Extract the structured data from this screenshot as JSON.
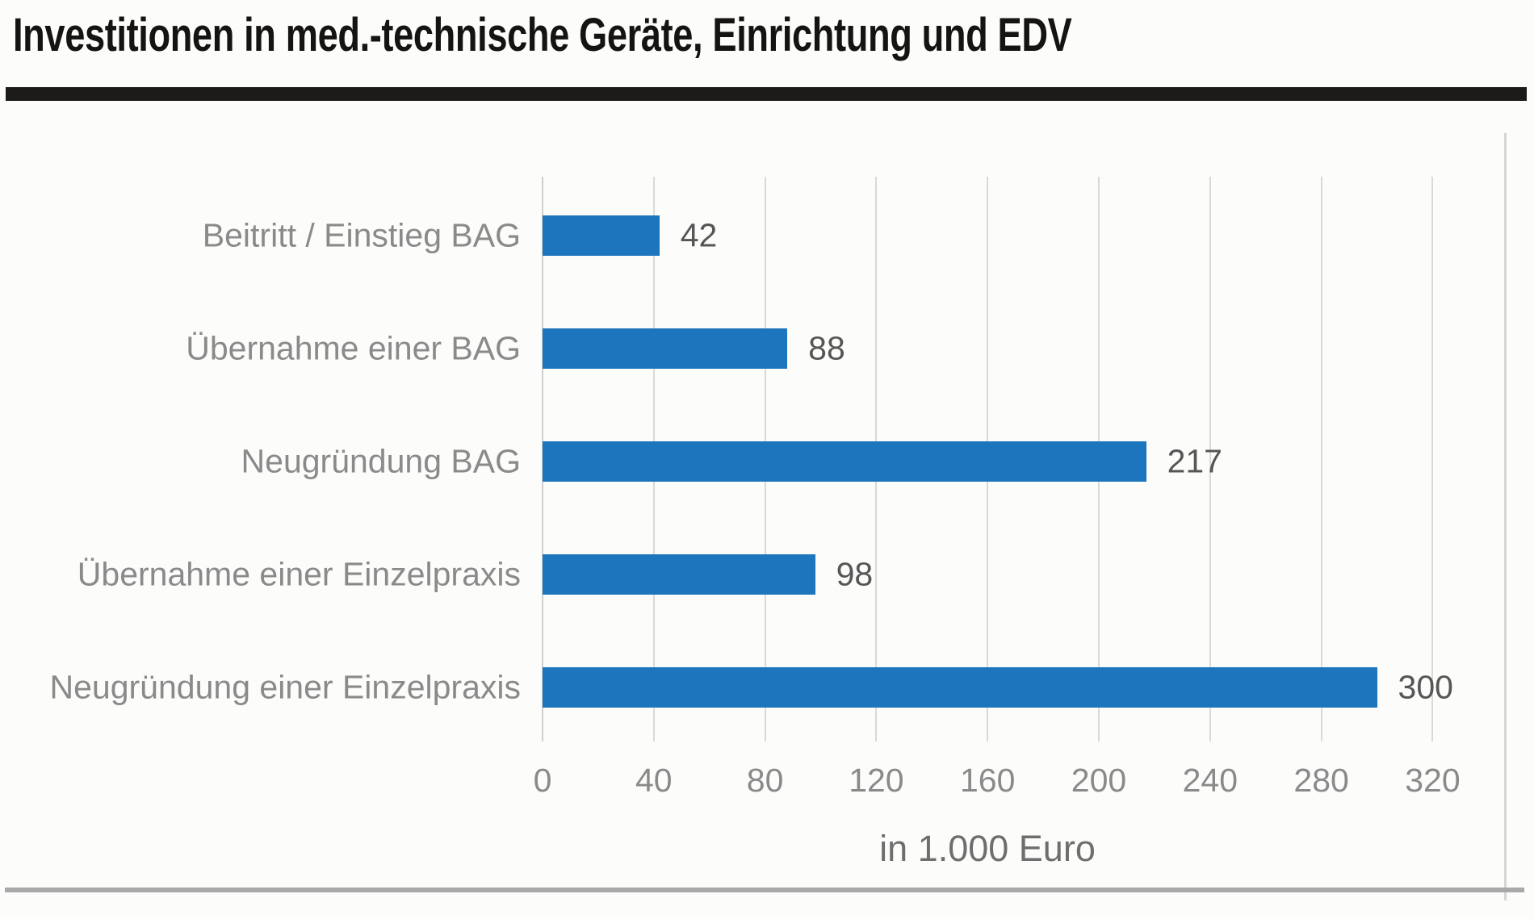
{
  "header": {
    "title": "Investitionen in med.-technische Geräte, Einrichtung und EDV"
  },
  "chart_data": {
    "type": "bar",
    "orientation": "horizontal",
    "title": "Investitionen in med.-technische Geräte, Einrichtung und EDV",
    "categories": [
      "Beitritt / Einstieg BAG",
      "Übernahme einer BAG",
      "Neugründung BAG",
      "Übernahme einer Einzelpraxis",
      "Neugründung einer Einzelpraxis"
    ],
    "values": [
      42,
      88,
      217,
      98,
      300
    ],
    "data_labels": [
      "42",
      "88",
      "217",
      "98",
      "300"
    ],
    "xlabel": "in 1.000 Euro",
    "ylabel": "",
    "x_ticks": [
      0,
      40,
      80,
      120,
      160,
      200,
      240,
      280,
      320
    ],
    "xlim": [
      0,
      346
    ],
    "grid": true,
    "legend": false,
    "bar_color": "#1c75bd"
  },
  "colors": {
    "bar": "#1c75bd",
    "title_text": "#151413",
    "title_rule": "#1d1a1a",
    "category_label": "#8a8a8a",
    "value_label": "#565656",
    "tick_label": "#8a8a8a",
    "axis_label": "#6e6e6e",
    "gridline": "#d9d9d9",
    "bottom_rule": "#a9a9a9",
    "background": "#fcfcfb"
  }
}
